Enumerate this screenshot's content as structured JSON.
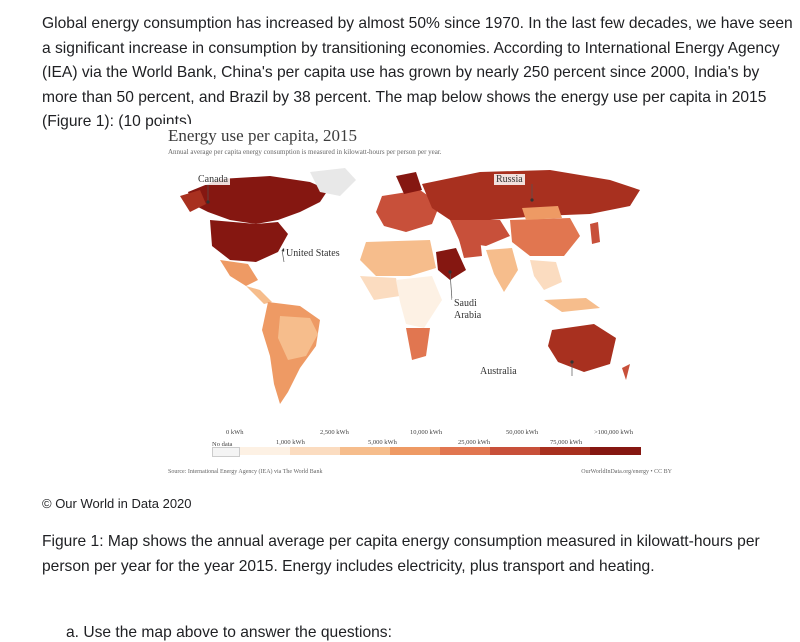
{
  "intro_text": "Global energy consumption has increased by almost 50% since 1970. In the last few decades, we have seen a significant increase in consumption by transitioning economies. According to International Energy Agency (IEA) via the World Bank, China's per capita use has grown by nearly 250 percent since 2000, India's by more than 50 percent, and Brazil by 38 percent. The map below shows the energy use per capita in 2015 (Figure 1): (10 points)",
  "figure": {
    "title": "Energy use per capita, 2015",
    "subtitle": "Annual average per capita energy consumption is measured in kilowatt-hours per person per year.",
    "labels": {
      "canada": "Canada",
      "russia": "Russia",
      "united_states": "United States",
      "saudi": "Saudi",
      "arabia": "Arabia",
      "australia": "Australia"
    },
    "legend": {
      "no_data": "No data",
      "ticks_top": [
        "0 kWh",
        "2,500 kWh",
        "10,000 kWh",
        "50,000 kWh",
        ">100,000 kWh"
      ],
      "ticks_bottom": [
        "1,000 kWh",
        "5,000 kWh",
        "25,000 kWh",
        "75,000 kWh"
      ],
      "colors": [
        "#fdf1e4",
        "#fbdcc0",
        "#f6bd8c",
        "#ee9a64",
        "#e17650",
        "#c8503a",
        "#a8301f",
        "#851711"
      ]
    },
    "source": "Source: International Energy Agency (IEA) via The World Bank",
    "credit": "OurWorldInData.org/energy  •  CC BY"
  },
  "copyright": "© Our World in Data 2020",
  "caption": "Figure 1: Map shows the annual average per capita energy consumption measured in kilowatt-hours per person per year for the year 2015. Energy includes electricity, plus transport and heating.",
  "question": "a. Use the map above to answer the questions:"
}
